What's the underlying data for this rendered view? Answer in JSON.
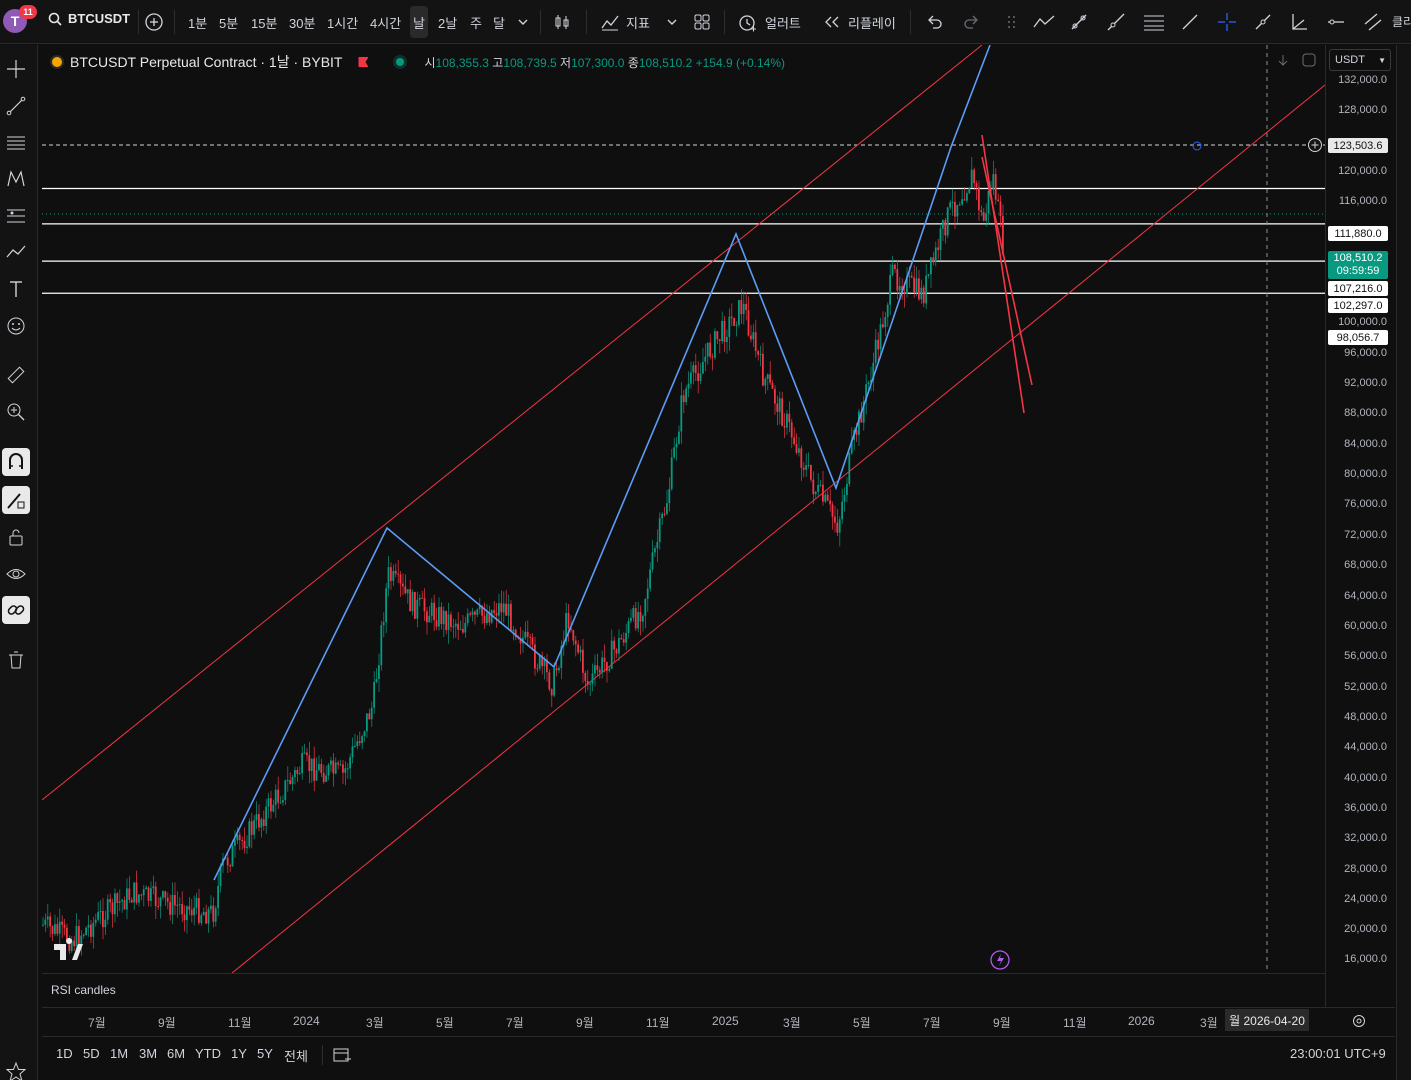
{
  "topbar": {
    "avatar_letter": "T",
    "notification_count": "11",
    "symbol": "BTCUSDT",
    "intervals": [
      "1분",
      "5분",
      "15분",
      "30분",
      "1시간",
      "4시간",
      "날",
      "2날",
      "주",
      "달"
    ],
    "active_interval": "날",
    "indicators_label": "지표",
    "alert_label": "얼러트",
    "replay_label": "리플레이",
    "overflow_label": "클리"
  },
  "legend": {
    "title": "BTCUSDT Perpetual Contract · 1날 · BYBIT",
    "open_label": "시",
    "open": "108,355.3",
    "high_label": "고",
    "high": "108,739.5",
    "low_label": "저",
    "low": "107,300.0",
    "close_label": "종",
    "close": "108,510.2",
    "change": "+154.9 (+0.14%)"
  },
  "currency": "USDT",
  "price_axis": {
    "labels": [
      "132,000.0",
      "128,000.0",
      "120,000.0",
      "116,000.0",
      "100,000.0",
      "96,000.0",
      "92,000.0",
      "88,000.0",
      "84,000.0",
      "80,000.0",
      "76,000.0",
      "72,000.0",
      "68,000.0",
      "64,000.0",
      "60,000.0",
      "56,000.0",
      "52,000.0",
      "48,000.0",
      "44,000.0",
      "40,000.0",
      "36,000.0",
      "32,000.0",
      "28,000.0",
      "24,000.0",
      "20,000.0",
      "16,000.0"
    ],
    "tags": {
      "crosshair": "123,503.6",
      "level_1": "111,880.0",
      "current_price": "108,510.2",
      "countdown": "09:59:59",
      "level_2": "107,216.0",
      "level_3": "102,297.0",
      "level_4": "98,056.7"
    }
  },
  "rsi_label": "RSI candles",
  "time_axis": {
    "labels": [
      "7월",
      "9월",
      "11월",
      "2024",
      "3월",
      "5월",
      "7월",
      "9월",
      "11월",
      "2025",
      "3월",
      "5월",
      "7월",
      "9월",
      "11월",
      "2026",
      "3월"
    ],
    "crosshair_date": "월 2026-04-20"
  },
  "bottombar": {
    "ranges": [
      "1D",
      "5D",
      "1M",
      "3M",
      "6M",
      "YTD",
      "1Y",
      "5Y",
      "전체"
    ],
    "clock": "23:00:01 UTC+9"
  },
  "colors": {
    "up": "#089981",
    "down": "#f23645",
    "channel": "#f23645",
    "zigzag": "#5b9cf6",
    "hline": "#ffffff"
  }
}
